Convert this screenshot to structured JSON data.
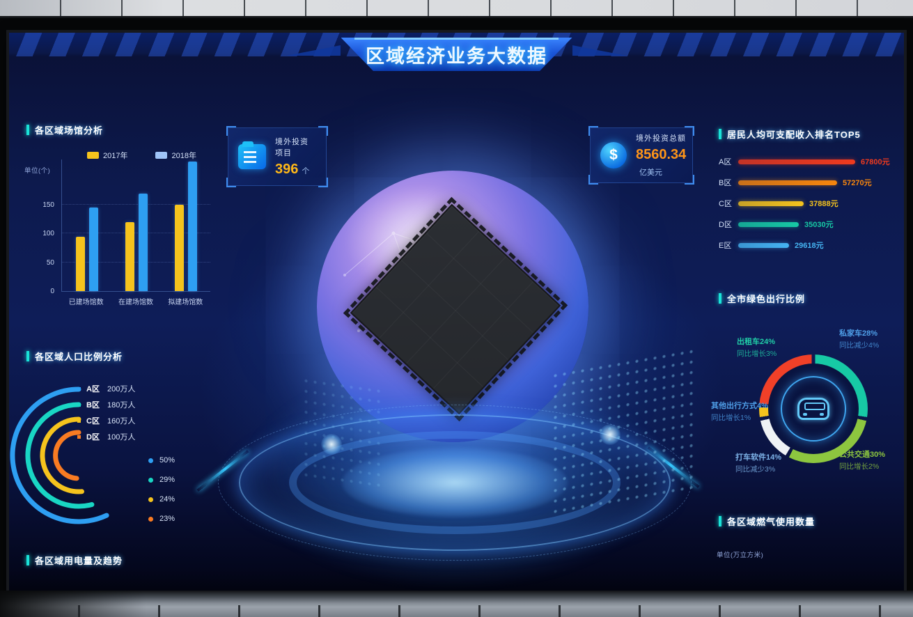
{
  "header": {
    "title": "区域经济业务大数据"
  },
  "stat_cards": [
    {
      "icon": "projects-folder-icon",
      "label": "境外投资项目",
      "value": "396",
      "unit": "个",
      "value_color": "#ffb818"
    },
    {
      "icon": "dollar-coin-icon",
      "label": "境外投资总额",
      "value": "8560.34",
      "unit": "亿美元",
      "value_color": "#ff9518"
    }
  ],
  "panels": {
    "venues": {
      "title": "各区域场馆分析",
      "unit_label": "单位(个)"
    },
    "population": {
      "title": "各区域人口比例分析"
    },
    "electricity": {
      "title": "各区域用电量及趋势"
    },
    "income": {
      "title": "居民人均可支配收入排名TOP5"
    },
    "green_travel": {
      "title": "全市绿色出行比例"
    },
    "gas": {
      "title": "各区域燃气使用数量",
      "unit_label": "单位(万立方米)"
    }
  },
  "chart_data": [
    {
      "id": "venues",
      "type": "bar",
      "title": "各区域场馆分析",
      "unit": "单位(个)",
      "categories": [
        "已建场馆数",
        "在建场馆数",
        "拟建场馆数"
      ],
      "series": [
        {
          "name": "2017年",
          "color": "#f5c31d",
          "values": [
            95,
            120,
            150
          ]
        },
        {
          "name": "2018年",
          "color": "#2e9ff2",
          "values": [
            145,
            170,
            225
          ]
        }
      ],
      "yticks": [
        0,
        50,
        100,
        150
      ],
      "ylim": [
        0,
        230
      ],
      "grid": true,
      "legend_position": "top"
    },
    {
      "id": "population",
      "type": "arc-rings",
      "title": "各区域人口比例分析",
      "items": [
        {
          "label": "A区",
          "value": "200万人",
          "percent": "50%",
          "color": "#2e9ff2",
          "radius": 95,
          "sweep": 205
        },
        {
          "label": "B区",
          "value": "180万人",
          "percent": "29%",
          "color": "#19d6c4",
          "radius": 73,
          "sweep": 195
        },
        {
          "label": "C区",
          "value": "160万人",
          "percent": "24%",
          "color": "#f5c31d",
          "radius": 52,
          "sweep": 185
        },
        {
          "label": "D区",
          "value": "100万人",
          "percent": "23%",
          "color": "#f97b22",
          "radius": 33,
          "sweep": 175
        }
      ]
    },
    {
      "id": "income",
      "type": "bar-horizontal",
      "title": "居民人均可支配收入排名TOP5",
      "max_value": 67800,
      "rows": [
        {
          "label": "A区",
          "value": 67800,
          "value_label": "67800元",
          "color": "#f03a1e"
        },
        {
          "label": "B区",
          "value": 57270,
          "value_label": "57270元",
          "color": "#f8860d"
        },
        {
          "label": "C区",
          "value": 37888,
          "value_label": "37888元",
          "color": "#f5c31d"
        },
        {
          "label": "D区",
          "value": 35030,
          "value_label": "35030元",
          "color": "#17c9a5"
        },
        {
          "label": "E区",
          "value": 29618,
          "value_label": "29618元",
          "color": "#45b4f2"
        }
      ]
    },
    {
      "id": "green_travel",
      "type": "donut",
      "title": "全市绿色出行比例",
      "center_icon": "car",
      "segments": [
        {
          "name": "私家车",
          "percent": 28,
          "name_pct": "私家车28%",
          "change": "同比减少4%",
          "color": "#17c9a5",
          "label_color": "#4f9fe8"
        },
        {
          "name": "公共交通",
          "percent": 30,
          "name_pct": "公共交通30%",
          "change": "同比增长2%",
          "color": "#8dc63f",
          "label_color": "#8dc63f"
        },
        {
          "name": "打车软件",
          "percent": 14,
          "name_pct": "打车软件14%",
          "change": "同比减少3%",
          "color": "#eef2f5",
          "label_color": "#7fb5ea"
        },
        {
          "name": "其他出行方式",
          "percent": 4,
          "name_pct": "其他出行方式4%",
          "change": "同比增长1%",
          "color": "#f5c31d",
          "label_color": "#4f9fe8"
        },
        {
          "name": "出租车",
          "percent": 24,
          "name_pct": "出租车24%",
          "change": "同比增长3%",
          "color": "#f04028",
          "label_color": "#21d0a8"
        }
      ]
    }
  ]
}
